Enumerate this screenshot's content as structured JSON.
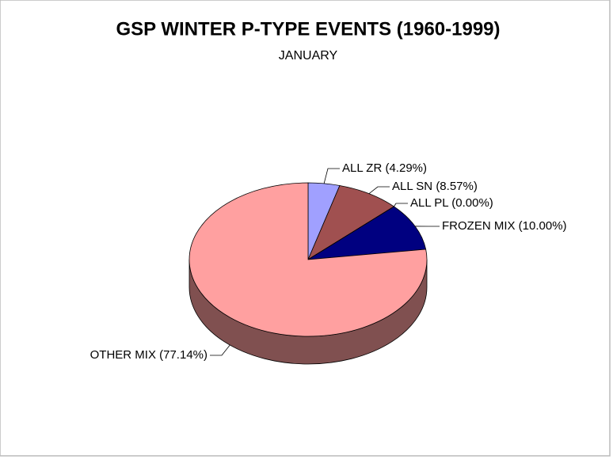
{
  "chart_data": {
    "type": "pie",
    "title": "GSP WINTER P-TYPE EVENTS (1960-1999)",
    "subtitle": "JANUARY",
    "categories": [
      "ALL ZR",
      "ALL SN",
      "ALL PL",
      "FROZEN MIX",
      "OTHER MIX"
    ],
    "values": [
      4.29,
      8.57,
      0.0,
      10.0,
      77.14
    ],
    "value_labels": [
      "(4.29%)",
      "(8.57%)",
      "(0.00%)",
      "(10.00%)",
      "(77.14%)"
    ],
    "colors": [
      "#a0a0ff",
      "#a05050",
      "#ffffa0",
      "#000080",
      "#ffa0a0"
    ]
  }
}
